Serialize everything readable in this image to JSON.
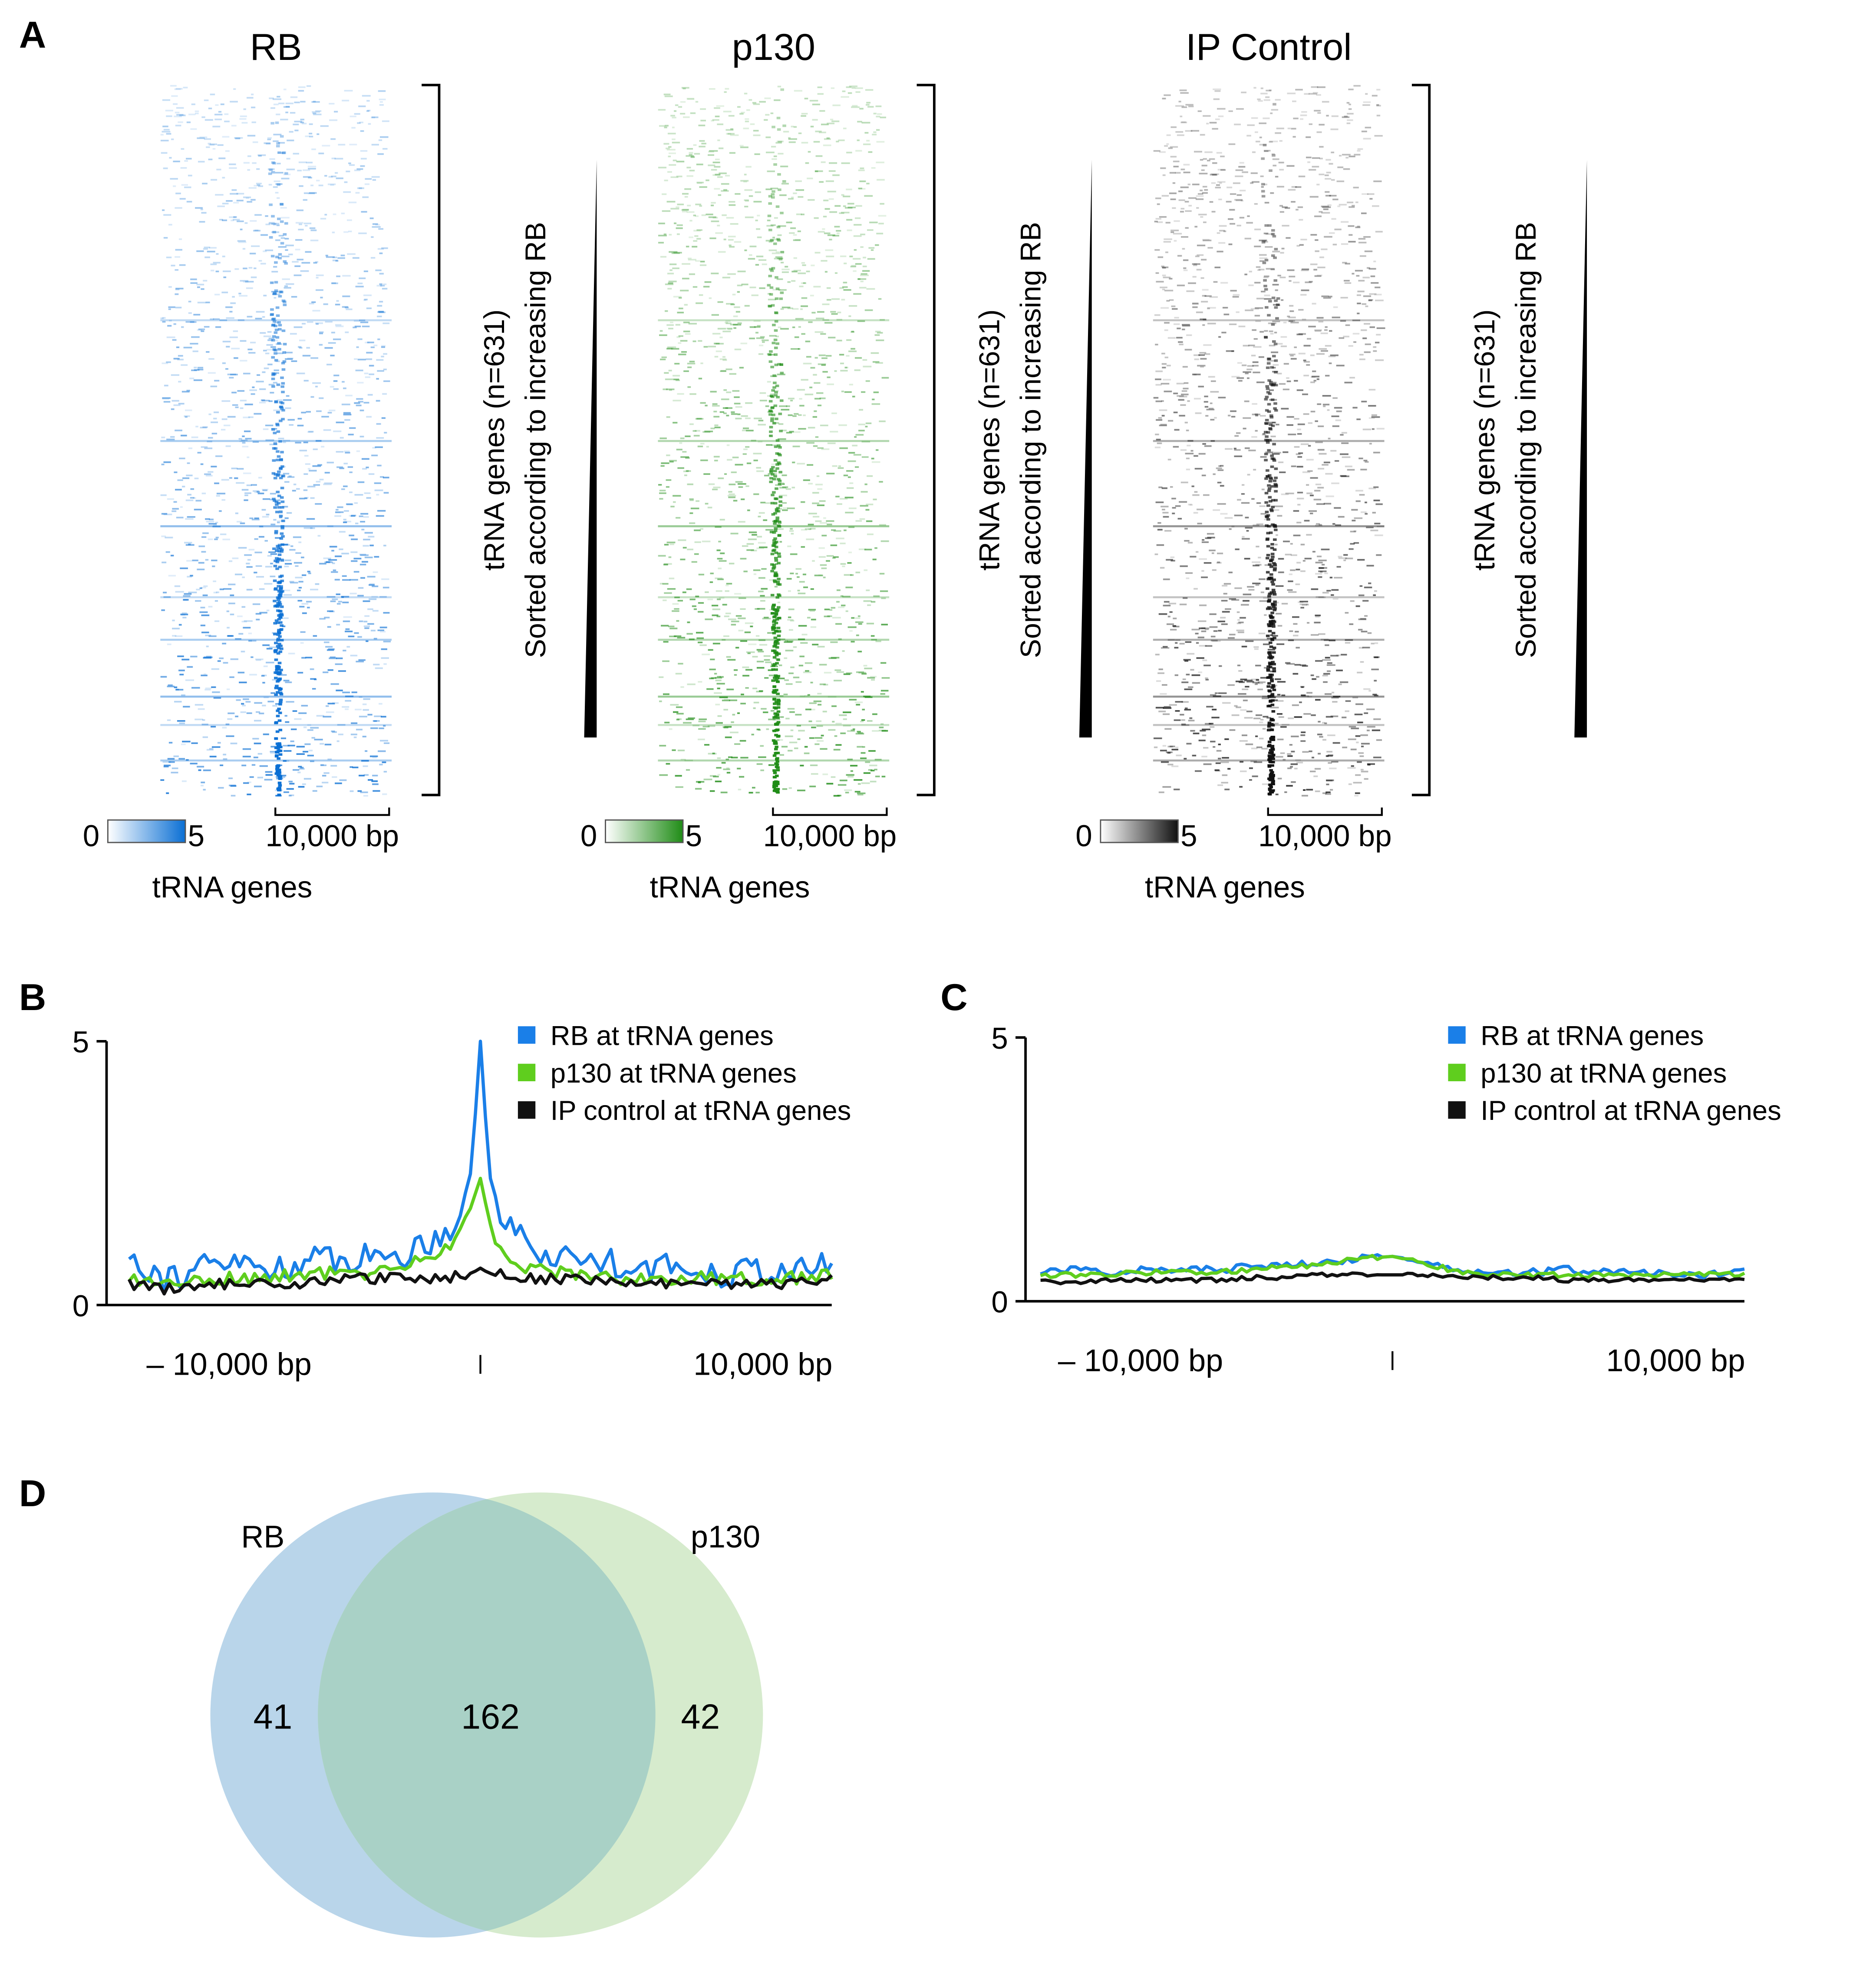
{
  "panel_letters": [
    "A",
    "B",
    "C",
    "D"
  ],
  "panel_a": {
    "heatmaps": [
      {
        "title": "RB",
        "color": "#0a6fd4",
        "scale_min": "0",
        "scale_max": "5",
        "distance_label": "10,000 bp",
        "x_label": "tRNA genes",
        "side_label_line1": "tRNA genes (n=631)",
        "side_label_line2": "Sorted according to increasing RB"
      },
      {
        "title": "p130",
        "color": "#1f8c16",
        "scale_min": "0",
        "scale_max": "5",
        "distance_label": "10,000 bp",
        "x_label": "tRNA genes",
        "side_label_line1": "tRNA genes (n=631)",
        "side_label_line2": "Sorted according to increasing RB"
      },
      {
        "title": "IP Control",
        "color": "#111111",
        "scale_min": "0",
        "scale_max": "5",
        "distance_label": "10,000 bp",
        "x_label": "tRNA genes",
        "side_label_line1": "tRNA genes (n=631)",
        "side_label_line2": "Sorted according to increasing RB"
      }
    ]
  },
  "chart_data": [
    {
      "panel": "B",
      "type": "line",
      "x_tick_labels": [
        "– 10,000 bp",
        "10,000 bp"
      ],
      "y_tick_labels": [
        "0",
        "5"
      ],
      "xlim": [
        -10000,
        10000
      ],
      "ylim": [
        0,
        5
      ],
      "legend": "top-right",
      "x": [
        -10000,
        -9000,
        -8000,
        -7000,
        -6000,
        -5000,
        -4000,
        -3000,
        -2000,
        -1500,
        -1000,
        -500,
        -250,
        0,
        250,
        500,
        1000,
        1500,
        2000,
        3000,
        4000,
        5000,
        6000,
        7000,
        8000,
        9000,
        10000
      ],
      "series": [
        {
          "name": "RB at tRNA genes",
          "color": "#1a7fe8",
          "values": [
            1.0,
            0.5,
            0.7,
            0.8,
            0.7,
            0.8,
            0.9,
            0.9,
            1.0,
            1.2,
            1.4,
            1.8,
            2.6,
            5.0,
            2.5,
            1.8,
            1.4,
            1.1,
            0.9,
            0.9,
            0.8,
            0.7,
            0.7,
            0.6,
            0.7,
            0.6,
            0.8
          ]
        },
        {
          "name": "p130 at tRNA genes",
          "color": "#5fce1e",
          "values": [
            0.5,
            0.4,
            0.5,
            0.5,
            0.5,
            0.6,
            0.6,
            0.6,
            0.8,
            0.9,
            1.1,
            1.4,
            1.9,
            2.4,
            1.6,
            1.1,
            0.8,
            0.7,
            0.6,
            0.6,
            0.5,
            0.5,
            0.5,
            0.5,
            0.5,
            0.5,
            0.6
          ]
        },
        {
          "name": "IP control at tRNA genes",
          "color": "#111111",
          "values": [
            0.4,
            0.3,
            0.4,
            0.4,
            0.4,
            0.4,
            0.5,
            0.5,
            0.5,
            0.5,
            0.5,
            0.6,
            0.6,
            0.7,
            0.6,
            0.6,
            0.5,
            0.5,
            0.5,
            0.5,
            0.4,
            0.4,
            0.4,
            0.4,
            0.4,
            0.4,
            0.5
          ]
        }
      ]
    },
    {
      "panel": "C",
      "type": "line",
      "x_tick_labels": [
        "– 10,000 bp",
        "10,000 bp"
      ],
      "y_tick_labels": [
        "0",
        "5"
      ],
      "xlim": [
        -10000,
        10000
      ],
      "ylim": [
        0,
        5
      ],
      "legend": "top-right",
      "x": [
        -10000,
        -9000,
        -8000,
        -7000,
        -6000,
        -5000,
        -4000,
        -3000,
        -2000,
        -1000,
        0,
        1000,
        2000,
        3000,
        4000,
        5000,
        6000,
        7000,
        8000,
        9000,
        10000
      ],
      "series": [
        {
          "name": "RB at tRNA genes",
          "color": "#1a7fe8",
          "values": [
            0.55,
            0.6,
            0.55,
            0.6,
            0.6,
            0.6,
            0.65,
            0.7,
            0.75,
            0.8,
            0.85,
            0.75,
            0.6,
            0.55,
            0.55,
            0.6,
            0.55,
            0.55,
            0.5,
            0.5,
            0.55
          ]
        },
        {
          "name": "p130 at tRNA genes",
          "color": "#5fce1e",
          "values": [
            0.5,
            0.5,
            0.5,
            0.55,
            0.55,
            0.55,
            0.6,
            0.65,
            0.7,
            0.8,
            0.85,
            0.7,
            0.55,
            0.5,
            0.5,
            0.5,
            0.5,
            0.5,
            0.5,
            0.5,
            0.5
          ]
        },
        {
          "name": "IP control at tRNA genes",
          "color": "#111111",
          "values": [
            0.4,
            0.35,
            0.4,
            0.4,
            0.4,
            0.4,
            0.45,
            0.45,
            0.5,
            0.5,
            0.5,
            0.5,
            0.45,
            0.45,
            0.45,
            0.4,
            0.4,
            0.4,
            0.4,
            0.4,
            0.45
          ]
        }
      ]
    },
    {
      "panel": "D",
      "type": "venn",
      "sets": [
        {
          "name": "RB",
          "only": "41",
          "color": "#b9d5ea"
        },
        {
          "name": "p130",
          "only": "42",
          "color": "#d6ebcd"
        }
      ],
      "intersection": "162",
      "intersection_color": "#a9d1c6"
    }
  ]
}
